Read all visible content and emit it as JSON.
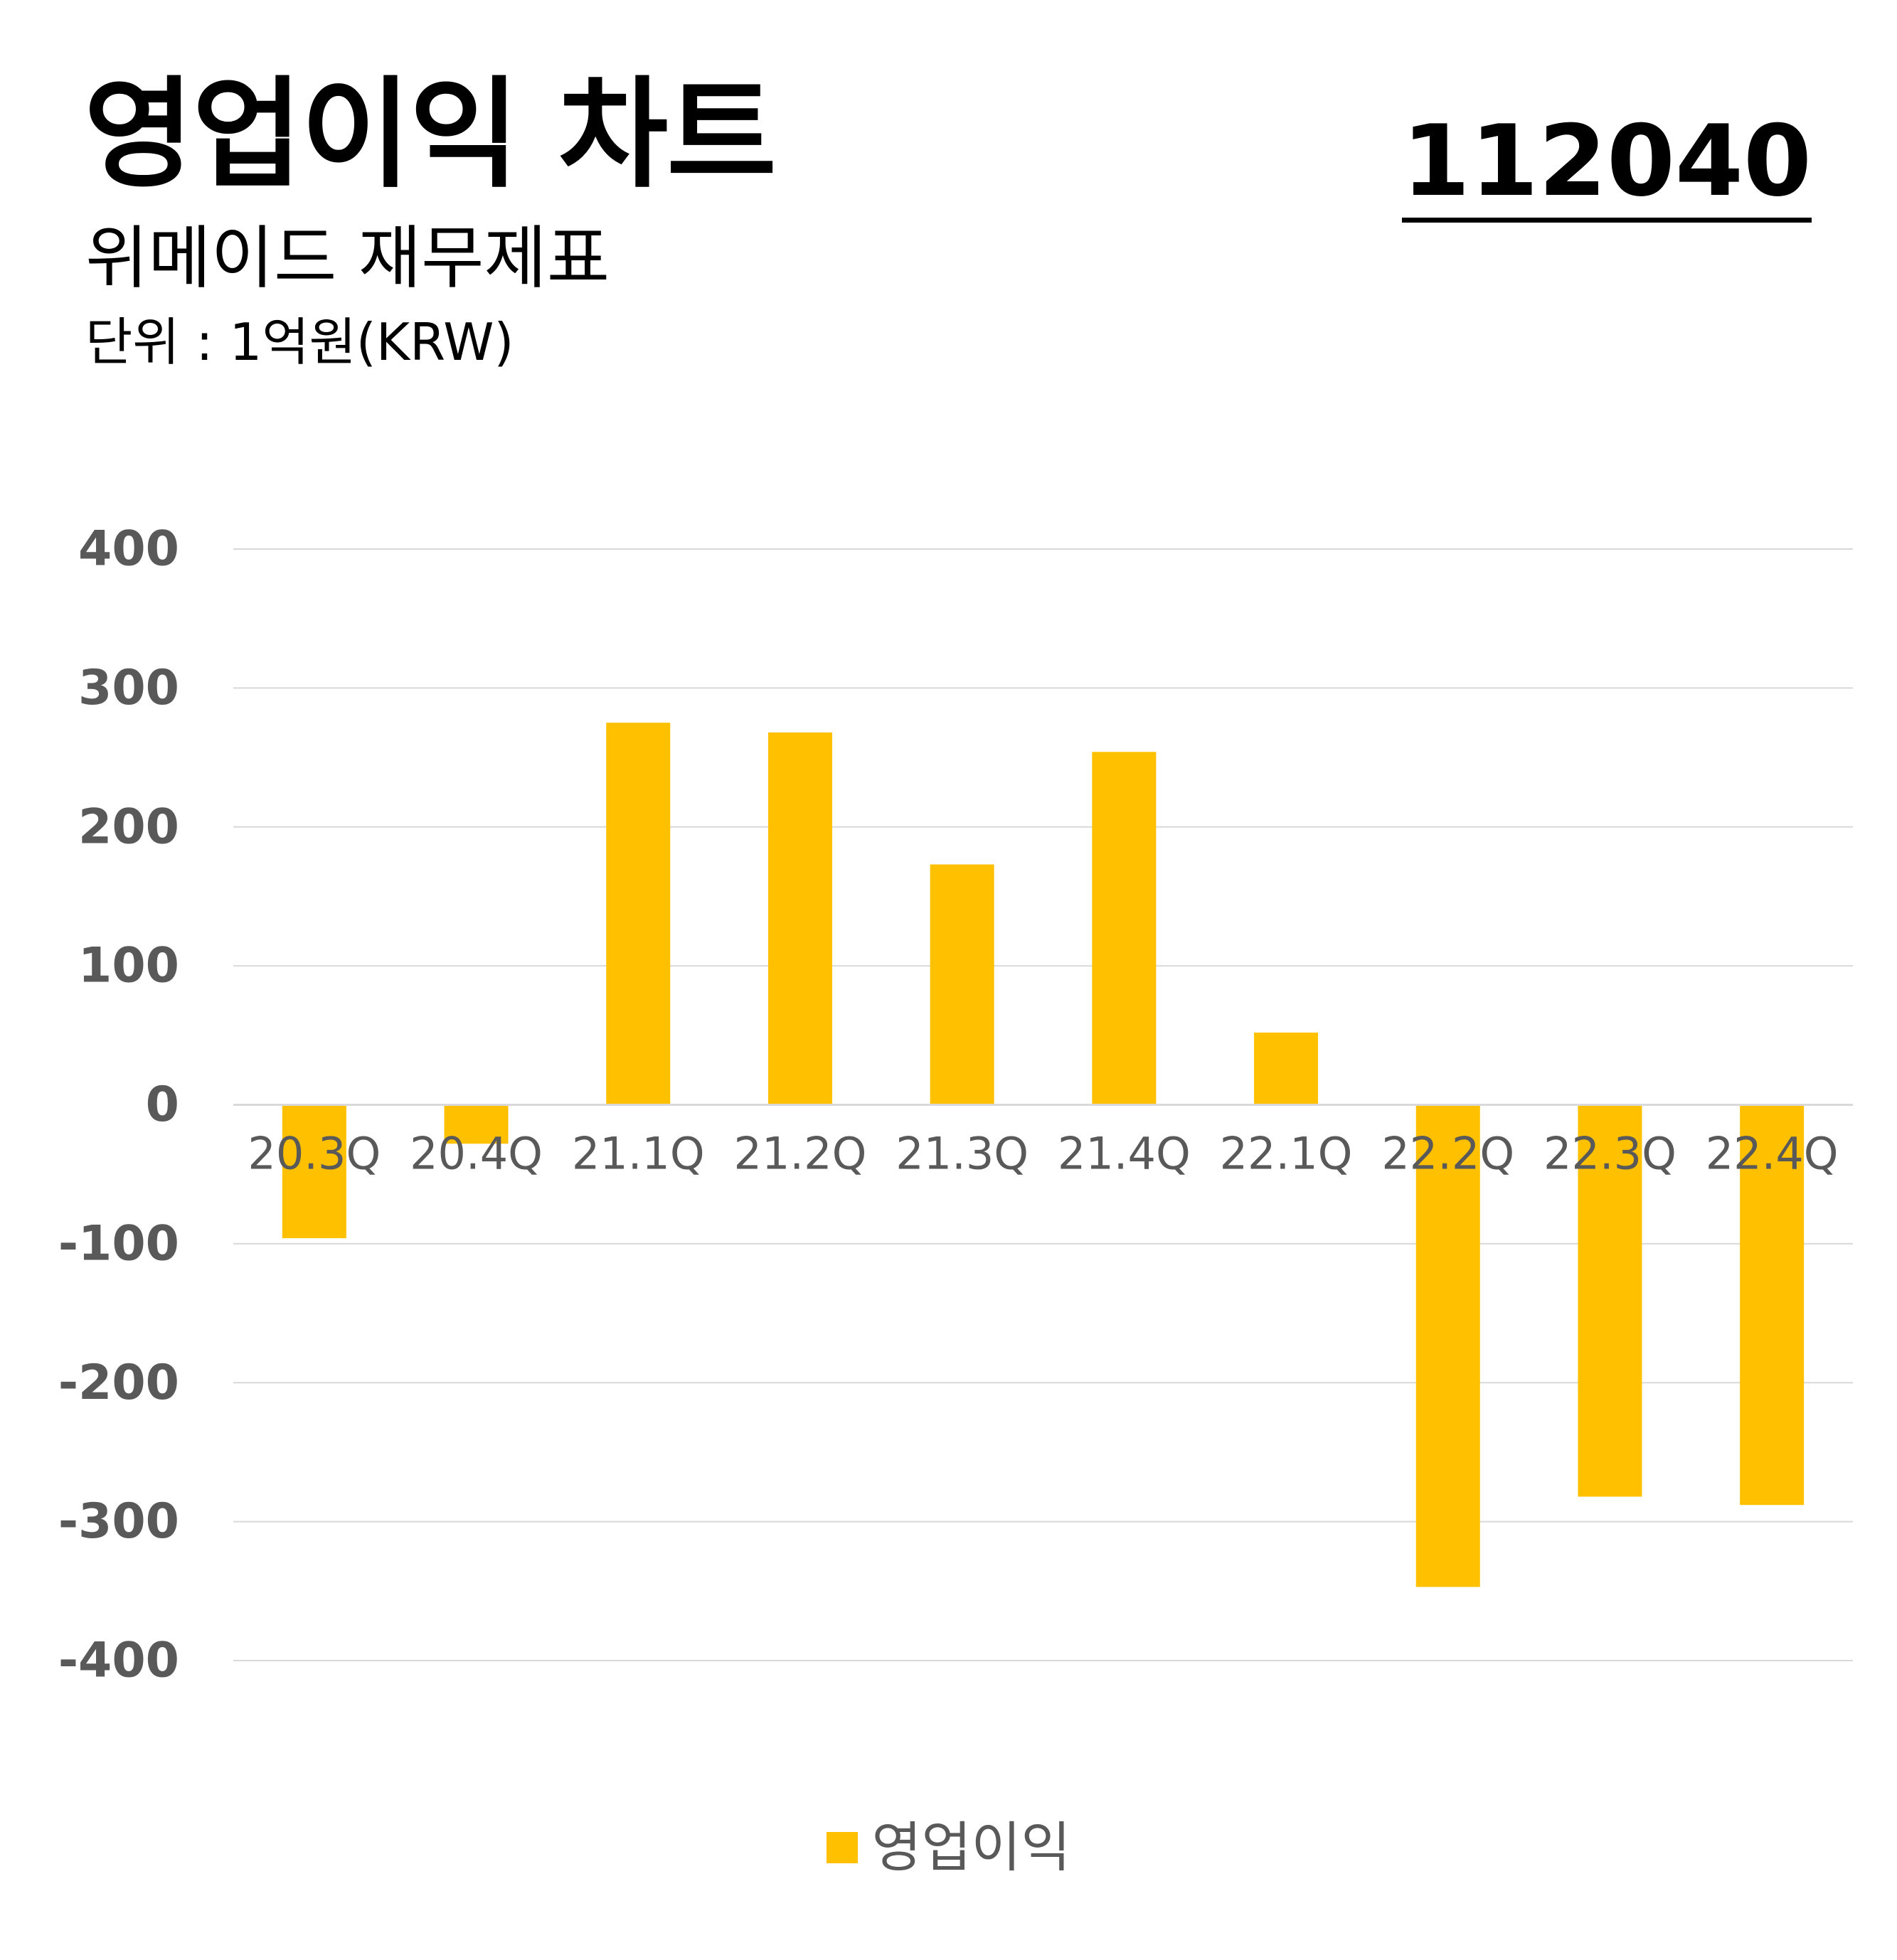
{
  "header": {
    "title": "영업이익 차트",
    "subtitle": "위메이드 재무제표",
    "unit": "단위 : 1억원(KRW)",
    "code": "112040"
  },
  "colors": {
    "bar": "#FFC000",
    "grid": "#D9D9D9",
    "tick_text": "#595959"
  },
  "chart_data": {
    "type": "bar",
    "categories": [
      "20.3Q",
      "20.4Q",
      "21.1Q",
      "21.2Q",
      "21.3Q",
      "21.4Q",
      "22.1Q",
      "22.2Q",
      "22.3Q",
      "22.4Q"
    ],
    "series": [
      {
        "name": "영업이익",
        "values": [
          -96,
          -28,
          275,
          268,
          173,
          254,
          52,
          -347,
          -282,
          -288
        ]
      }
    ],
    "yticks": [
      400,
      300,
      200,
      100,
      0,
      -100,
      -200,
      -300,
      -400
    ],
    "ylim": [
      -400,
      400
    ],
    "grid": true,
    "legend": "bottom"
  }
}
